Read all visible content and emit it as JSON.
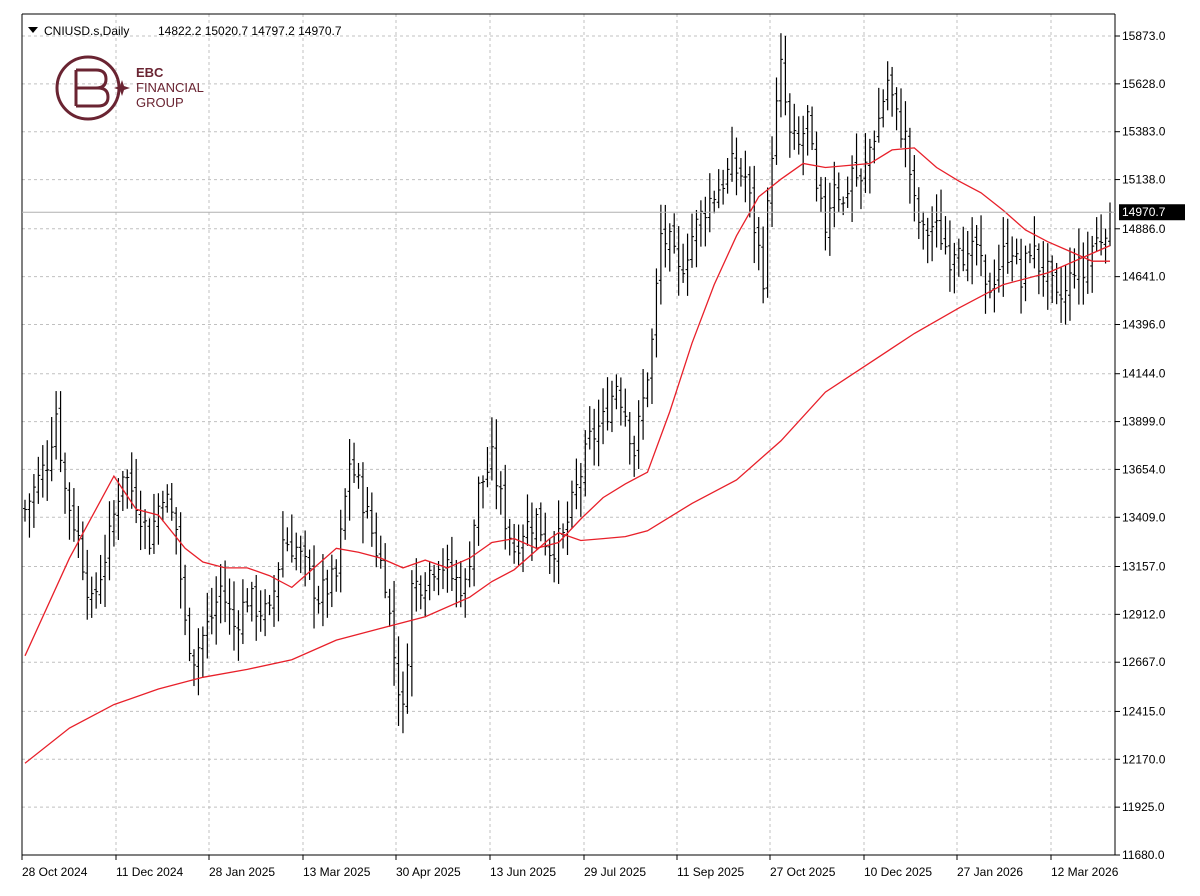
{
  "header": {
    "symbol": "CNIUSD.s,Daily",
    "ohlc": "14822.2 15020.7 14797.2 14970.7"
  },
  "logo": {
    "line1": "EBC",
    "line2": "FINANCIAL",
    "line3": "GROUP"
  },
  "colors": {
    "bars": "#000000",
    "ma": "#e8202a",
    "grid": "#c0c0c0",
    "logo": "#6a2432",
    "price_label_bg": "#000000"
  },
  "chart_data": {
    "type": "ohlc",
    "title": "",
    "symbol": "CNIUSD.s",
    "timeframe": "Daily",
    "last_price": "14970.7",
    "ylim": [
      11680,
      16000
    ],
    "y_ticks": [
      "15873.0",
      "15628.0",
      "15383.0",
      "15138.0",
      "14886.0",
      "14641.0",
      "14396.0",
      "14144.0",
      "13899.0",
      "13654.0",
      "13409.0",
      "13157.0",
      "12912.0",
      "12667.0",
      "12415.0",
      "12170.0",
      "11925.0",
      "11680.0"
    ],
    "x_ticks": [
      "28 Oct 2024",
      "11 Dec 2024",
      "28 Jan 2025",
      "13 Mar 2025",
      "30 Apr 2025",
      "13 Jun 2025",
      "29 Jul 2025",
      "11 Sep 2025",
      "27 Oct 2025",
      "10 Dec 2025",
      "27 Jan 2026",
      "12 Mar 2026"
    ],
    "price_path": [
      [
        0,
        13450
      ],
      [
        5,
        13700
      ],
      [
        7,
        13950
      ],
      [
        9,
        13550
      ],
      [
        12,
        13300
      ],
      [
        15,
        12950
      ],
      [
        19,
        13300
      ],
      [
        22,
        13650
      ],
      [
        25,
        13500
      ],
      [
        28,
        13300
      ],
      [
        31,
        13550
      ],
      [
        34,
        13350
      ],
      [
        36,
        12850
      ],
      [
        38,
        12700
      ],
      [
        42,
        12900
      ],
      [
        44,
        13050
      ],
      [
        47,
        12850
      ],
      [
        50,
        13000
      ],
      [
        52,
        12950
      ],
      [
        55,
        12900
      ],
      [
        58,
        13300
      ],
      [
        61,
        13250
      ],
      [
        63,
        13150
      ],
      [
        66,
        13000
      ],
      [
        70,
        13100
      ],
      [
        73,
        13700
      ],
      [
        76,
        13500
      ],
      [
        79,
        13250
      ],
      [
        81,
        13100
      ],
      [
        83,
        12700
      ],
      [
        85,
        12400
      ],
      [
        87,
        13050
      ],
      [
        90,
        13100
      ],
      [
        93,
        13200
      ],
      [
        96,
        13100
      ],
      [
        99,
        13050
      ],
      [
        102,
        13550
      ],
      [
        105,
        13700
      ],
      [
        108,
        13400
      ],
      [
        110,
        13250
      ],
      [
        112,
        13350
      ],
      [
        115,
        13400
      ],
      [
        118,
        13250
      ],
      [
        121,
        13300
      ],
      [
        124,
        13550
      ],
      [
        127,
        13800
      ],
      [
        130,
        13900
      ],
      [
        133,
        14100
      ],
      [
        135,
        13950
      ],
      [
        137,
        13750
      ],
      [
        139,
        14000
      ],
      [
        141,
        14300
      ],
      [
        143,
        14850
      ],
      [
        145,
        14800
      ],
      [
        147,
        14650
      ],
      [
        150,
        14850
      ],
      [
        153,
        15000
      ],
      [
        156,
        15100
      ],
      [
        159,
        15200
      ],
      [
        162,
        15150
      ],
      [
        164,
        14900
      ],
      [
        166,
        14650
      ],
      [
        168,
        15300
      ],
      [
        170,
        15700
      ],
      [
        172,
        15350
      ],
      [
        174,
        15300
      ],
      [
        176,
        15450
      ],
      [
        178,
        15050
      ],
      [
        180,
        14900
      ],
      [
        182,
        15150
      ],
      [
        184,
        15000
      ],
      [
        186,
        15200
      ],
      [
        188,
        15100
      ],
      [
        190,
        15300
      ],
      [
        192,
        15450
      ],
      [
        194,
        15650
      ],
      [
        196,
        15450
      ],
      [
        198,
        15350
      ],
      [
        200,
        15000
      ],
      [
        202,
        14850
      ],
      [
        204,
        14900
      ],
      [
        206,
        14850
      ],
      [
        208,
        14750
      ],
      [
        210,
        14850
      ],
      [
        212,
        14700
      ],
      [
        214,
        14800
      ],
      [
        216,
        14550
      ],
      [
        218,
        14650
      ],
      [
        220,
        14750
      ],
      [
        222,
        14800
      ],
      [
        224,
        14600
      ],
      [
        226,
        14800
      ],
      [
        228,
        14700
      ],
      [
        230,
        14650
      ],
      [
        232,
        14500
      ],
      [
        234,
        14550
      ],
      [
        236,
        14700
      ],
      [
        238,
        14650
      ],
      [
        240,
        14800
      ],
      [
        242,
        14850
      ],
      [
        244,
        14970
      ]
    ],
    "series": [
      {
        "values": [
          [
            0,
            12700
          ],
          [
            10,
            13200
          ],
          [
            20,
            13620
          ],
          [
            25,
            13450
          ],
          [
            30,
            13420
          ],
          [
            36,
            13250
          ],
          [
            40,
            13180
          ],
          [
            45,
            13150
          ],
          [
            50,
            13150
          ],
          [
            55,
            13110
          ],
          [
            60,
            13050
          ],
          [
            65,
            13150
          ],
          [
            70,
            13250
          ],
          [
            75,
            13230
          ],
          [
            80,
            13200
          ],
          [
            85,
            13150
          ],
          [
            90,
            13190
          ],
          [
            95,
            13150
          ],
          [
            100,
            13200
          ],
          [
            105,
            13280
          ],
          [
            110,
            13300
          ],
          [
            115,
            13250
          ],
          [
            120,
            13280
          ],
          [
            125,
            13400
          ],
          [
            130,
            13510
          ],
          [
            135,
            13580
          ],
          [
            140,
            13640
          ],
          [
            145,
            13950
          ],
          [
            150,
            14300
          ],
          [
            155,
            14600
          ],
          [
            160,
            14850
          ],
          [
            165,
            15050
          ],
          [
            170,
            15140
          ],
          [
            175,
            15220
          ],
          [
            180,
            15200
          ],
          [
            185,
            15210
          ],
          [
            190,
            15220
          ],
          [
            195,
            15290
          ],
          [
            200,
            15300
          ],
          [
            205,
            15200
          ],
          [
            210,
            15130
          ],
          [
            215,
            15070
          ],
          [
            220,
            14980
          ],
          [
            225,
            14880
          ],
          [
            230,
            14820
          ],
          [
            235,
            14770
          ],
          [
            240,
            14720
          ],
          [
            244,
            14720
          ]
        ]
      },
      {
        "values": [
          [
            0,
            12150
          ],
          [
            10,
            12330
          ],
          [
            20,
            12450
          ],
          [
            30,
            12530
          ],
          [
            40,
            12590
          ],
          [
            50,
            12630
          ],
          [
            60,
            12680
          ],
          [
            70,
            12780
          ],
          [
            80,
            12840
          ],
          [
            90,
            12900
          ],
          [
            100,
            13000
          ],
          [
            105,
            13080
          ],
          [
            110,
            13140
          ],
          [
            118,
            13300
          ],
          [
            120,
            13330
          ],
          [
            125,
            13290
          ],
          [
            130,
            13300
          ],
          [
            135,
            13310
          ],
          [
            140,
            13340
          ],
          [
            150,
            13480
          ],
          [
            160,
            13600
          ],
          [
            170,
            13800
          ],
          [
            180,
            14050
          ],
          [
            190,
            14200
          ],
          [
            200,
            14350
          ],
          [
            210,
            14480
          ],
          [
            220,
            14600
          ],
          [
            230,
            14660
          ],
          [
            240,
            14760
          ],
          [
            244,
            14800
          ]
        ]
      }
    ]
  }
}
